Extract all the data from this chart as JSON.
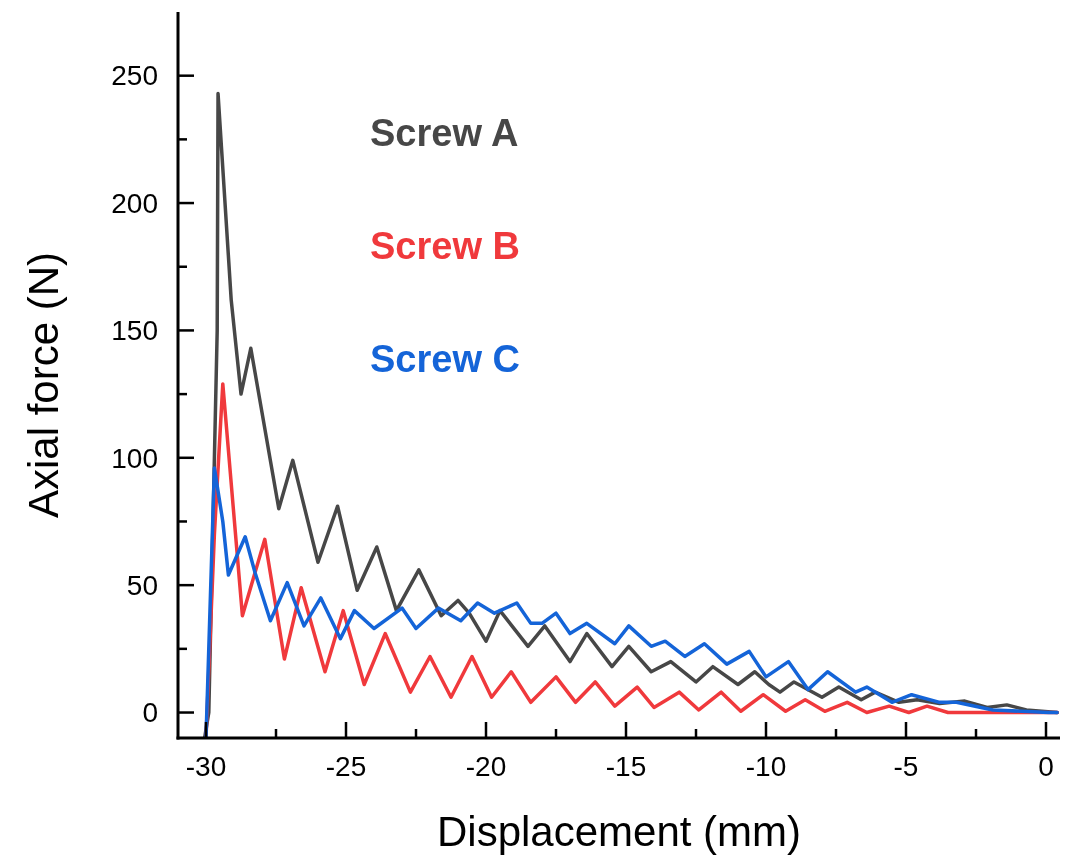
{
  "chart_data": {
    "type": "line",
    "xlabel": "Displacement (mm)",
    "ylabel": "Axial force (N)",
    "xlim": [
      -31,
      0.5
    ],
    "ylim": [
      -10,
      275
    ],
    "xticks": [
      -30,
      {
        "value": -27.5,
        "label": null
      },
      -25,
      {
        "value": -22.5,
        "label": null
      },
      -20,
      {
        "value": -17.5,
        "label": null
      },
      -15,
      {
        "value": -12.5,
        "label": null
      },
      -10,
      {
        "value": -7.5,
        "label": null
      },
      -5,
      {
        "value": -2.5,
        "label": null
      },
      0
    ],
    "yticks": [
      0,
      {
        "value": 25,
        "label": null
      },
      50,
      {
        "value": 75,
        "label": null
      },
      100,
      {
        "value": 125,
        "label": null
      },
      150,
      {
        "value": 175,
        "label": null
      },
      200,
      {
        "value": 225,
        "label": null
      },
      250
    ],
    "grid": false,
    "legend": "top left",
    "marker": "none",
    "line_style": "solid",
    "series": [
      {
        "name": "Screw A",
        "color": "#474747",
        "x": [
          -30.05,
          -29.9,
          -29.6,
          -29.57,
          -29.1,
          -28.75,
          -28.4,
          -27.4,
          -26.9,
          -26.0,
          -25.3,
          -24.6,
          -23.9,
          -23.2,
          -22.4,
          -21.6,
          -21.0,
          -20.6,
          -20.0,
          -19.5,
          -18.5,
          -17.9,
          -17.0,
          -16.4,
          -15.5,
          -14.9,
          -14.1,
          -13.4,
          -12.5,
          -11.9,
          -11.0,
          -10.4,
          -9.9,
          -9.5,
          -9.0,
          -8.0,
          -7.4,
          -6.6,
          -6.1,
          -5.25,
          -4.6,
          -3.8,
          -2.9,
          -2.1,
          -1.4,
          -0.7,
          0.4
        ],
        "values": [
          -10,
          0,
          150,
          243,
          162,
          125,
          143,
          80,
          99,
          59,
          81,
          48,
          65,
          40,
          56,
          38,
          44,
          39,
          28,
          40,
          26,
          34,
          20,
          31,
          18,
          26,
          16,
          20,
          12,
          18,
          11,
          16,
          11,
          8,
          12,
          6,
          10,
          5,
          8,
          4,
          5,
          3.5,
          4.5,
          2,
          3,
          1,
          0
        ]
      },
      {
        "name": "Screw B",
        "color": "#f0393c",
        "x": [
          -30.0,
          -29.7,
          -29.4,
          -29.2,
          -28.7,
          -27.9,
          -27.2,
          -26.6,
          -25.75,
          -25.1,
          -24.35,
          -23.6,
          -22.7,
          -22.0,
          -21.25,
          -20.5,
          -19.8,
          -19.1,
          -18.4,
          -17.5,
          -16.8,
          -16.1,
          -15.4,
          -14.6,
          -14.0,
          -13.1,
          -12.4,
          -11.6,
          -10.9,
          -10.1,
          -9.3,
          -8.6,
          -7.9,
          -7.1,
          -6.4,
          -5.6,
          -4.9,
          -4.25,
          -3.5,
          -1.9,
          0.4
        ],
        "values": [
          -10,
          70,
          129,
          103,
          38,
          68,
          21,
          49,
          16,
          40,
          11,
          31,
          8,
          22,
          6,
          22,
          6,
          16,
          4,
          14,
          4,
          12,
          2.5,
          10,
          2,
          8,
          1,
          8,
          0.5,
          7,
          0.5,
          5,
          0.5,
          4,
          0,
          2.5,
          0,
          2.5,
          0,
          0,
          0
        ]
      },
      {
        "name": "Screw C",
        "color": "#1464d8",
        "x": [
          -30.0,
          -29.7,
          -29.4,
          -29.2,
          -28.6,
          -28.25,
          -27.7,
          -27.1,
          -26.5,
          -25.9,
          -25.2,
          -24.7,
          -24.0,
          -23.0,
          -22.5,
          -21.7,
          -20.9,
          -20.3,
          -19.7,
          -18.9,
          -18.4,
          -18.0,
          -17.5,
          -17.0,
          -16.4,
          -15.4,
          -14.9,
          -14.1,
          -13.6,
          -12.9,
          -12.2,
          -11.4,
          -10.6,
          -10.0,
          -9.2,
          -8.5,
          -7.8,
          -6.8,
          -6.4,
          -5.5,
          -4.8,
          -3.8,
          -3.2,
          -1.9,
          0.1,
          0.4
        ],
        "values": [
          -10,
          96,
          75,
          54,
          69,
          55,
          36,
          51,
          34,
          45,
          29,
          40,
          33,
          41,
          33,
          41,
          36,
          43,
          39,
          43,
          35,
          35,
          39,
          31,
          35,
          27,
          34,
          26,
          28,
          22,
          27,
          19,
          24,
          14,
          20,
          9,
          16,
          8,
          10,
          4,
          7,
          4,
          4,
          1,
          0,
          0
        ]
      }
    ]
  }
}
